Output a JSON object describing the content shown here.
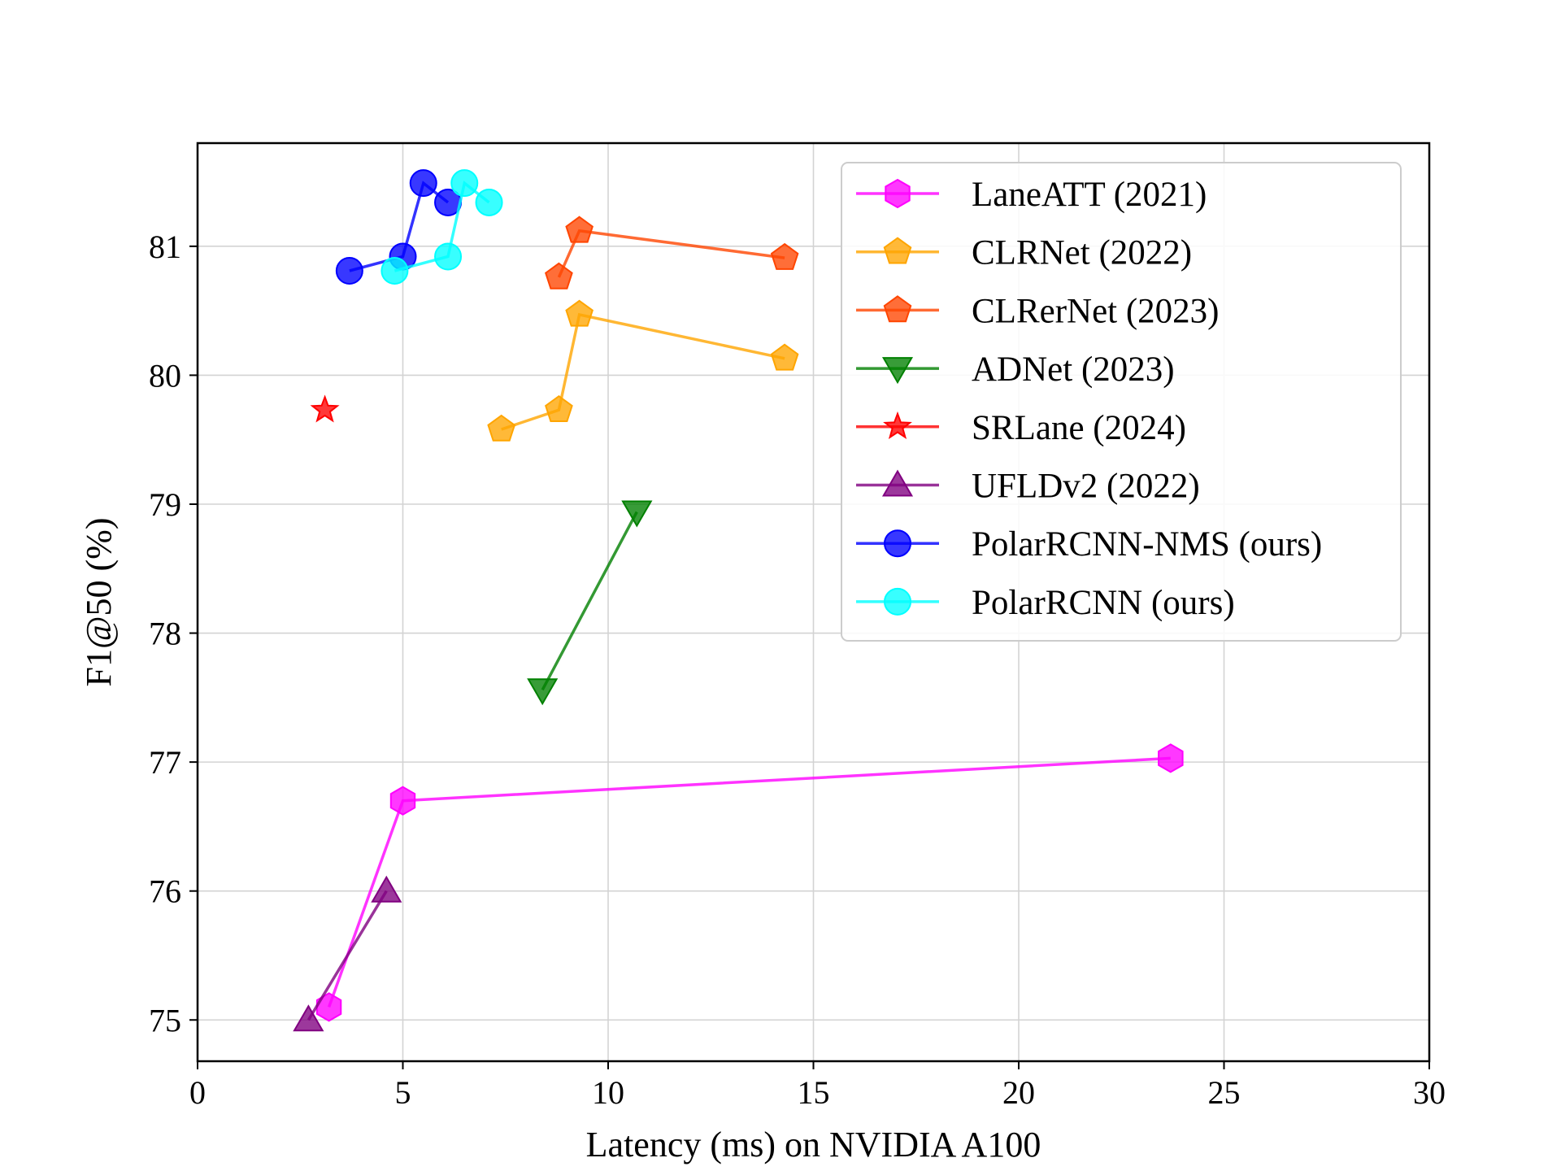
{
  "chart_data": {
    "type": "line",
    "xlabel": "Latency (ms) on NVIDIA A100",
    "ylabel": "F1@50 (%)",
    "xlim": [
      0,
      30
    ],
    "ylim": [
      74.68,
      81.8
    ],
    "xticks": [
      0,
      5,
      10,
      15,
      20,
      25,
      30
    ],
    "yticks": [
      75,
      76,
      77,
      78,
      79,
      80,
      81
    ],
    "grid": true,
    "legend_position": "top-right",
    "series": [
      {
        "name": "LaneATT (2021)",
        "color": "#ff00ff",
        "marker": "hexagon",
        "x": [
          3.2,
          5.0,
          23.7
        ],
        "y": [
          75.1,
          76.7,
          77.03
        ]
      },
      {
        "name": "CLRNet (2022)",
        "color": "#ffa500",
        "marker": "pentagon",
        "x": [
          7.4,
          8.8,
          9.3,
          14.3
        ],
        "y": [
          79.58,
          79.73,
          80.47,
          80.13
        ]
      },
      {
        "name": "CLRerNet (2023)",
        "color": "#ff4500",
        "marker": "pentagon",
        "x": [
          8.8,
          9.3,
          14.3
        ],
        "y": [
          80.76,
          81.12,
          80.91
        ]
      },
      {
        "name": "ADNet (2023)",
        "color": "#008000",
        "marker": "triangle-down",
        "x": [
          8.4,
          10.7
        ],
        "y": [
          77.56,
          78.94
        ]
      },
      {
        "name": "SRLane (2024)",
        "color": "#ff0000",
        "marker": "star",
        "x": [
          3.1
        ],
        "y": [
          79.73
        ]
      },
      {
        "name": "UFLDv2 (2022)",
        "color": "#800080",
        "marker": "triangle-up",
        "x": [
          2.7,
          4.6
        ],
        "y": [
          75.0,
          76.0
        ]
      },
      {
        "name": "PolarRCNN-NMS (ours)",
        "color": "#0000ff",
        "marker": "circle",
        "x": [
          3.7,
          5.0,
          5.5,
          6.1
        ],
        "y": [
          80.81,
          80.92,
          81.49,
          81.34
        ]
      },
      {
        "name": "PolarRCNN (ours)",
        "color": "#00ffff",
        "marker": "circle",
        "x": [
          4.8,
          6.1,
          6.5,
          7.1
        ],
        "y": [
          80.81,
          80.92,
          81.49,
          81.34
        ]
      }
    ]
  }
}
